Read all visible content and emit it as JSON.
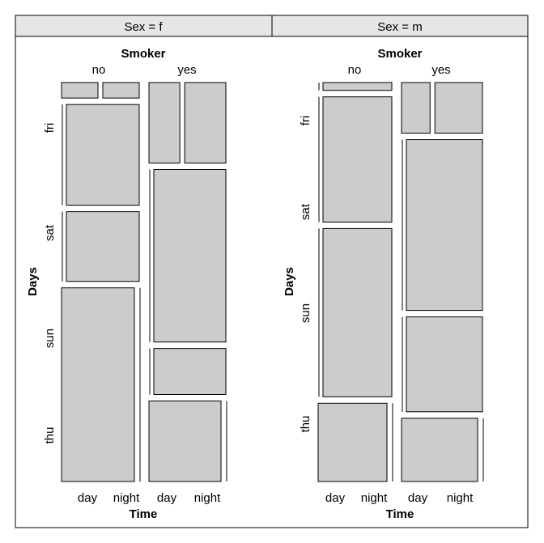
{
  "colors": {
    "tile_fill": "#cccccc",
    "strip_fill": "#e6e6e6",
    "border": "#000000"
  },
  "chart_data": {
    "type": "mosaic",
    "row_variable": "Days",
    "column_variable": "Smoker",
    "sub_column_variable": "Time",
    "smoker_levels": [
      "no",
      "yes"
    ],
    "time_levels": [
      "day",
      "night",
      "day",
      "night"
    ],
    "day_levels": [
      "fri",
      "sat",
      "sun",
      "thu"
    ],
    "panels": [
      {
        "strip": "Sex = f",
        "columns": [
          {
            "smoker": "no",
            "cells": [
              {
                "day": "fri",
                "day_count": 1,
                "night_count": 1
              },
              {
                "day": "sat",
                "day_count": 0,
                "night_count": 13
              },
              {
                "day": "sun",
                "day_count": 0,
                "night_count": 9
              },
              {
                "day": "thu",
                "day_count": 25,
                "night_count": 0
              }
            ]
          },
          {
            "smoker": "yes",
            "cells": [
              {
                "day": "fri",
                "day_count": 3,
                "night_count": 4
              },
              {
                "day": "sat",
                "day_count": 0,
                "night_count": 15
              },
              {
                "day": "sun",
                "day_count": 0,
                "night_count": 4
              },
              {
                "day": "thu",
                "day_count": 7,
                "night_count": 0
              }
            ]
          }
        ]
      },
      {
        "strip": "Sex = m",
        "columns": [
          {
            "smoker": "no",
            "cells": [
              {
                "day": "fri",
                "day_count": 0,
                "night_count": 2
              },
              {
                "day": "sat",
                "day_count": 0,
                "night_count": 32
              },
              {
                "day": "sun",
                "day_count": 0,
                "night_count": 43
              },
              {
                "day": "thu",
                "day_count": 20,
                "night_count": 0
              }
            ]
          },
          {
            "smoker": "yes",
            "cells": [
              {
                "day": "fri",
                "day_count": 3,
                "night_count": 5
              },
              {
                "day": "sat",
                "day_count": 0,
                "night_count": 27
              },
              {
                "day": "sun",
                "day_count": 0,
                "night_count": 15
              },
              {
                "day": "thu",
                "day_count": 10,
                "night_count": 0
              }
            ]
          }
        ]
      }
    ],
    "ylabel": "Days",
    "xlabel": "Time",
    "top_label": "Smoker"
  }
}
